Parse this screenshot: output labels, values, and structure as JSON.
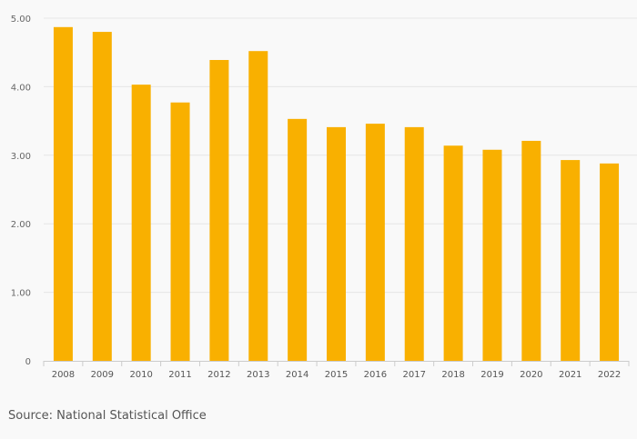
{
  "chart_data": {
    "type": "bar",
    "title": "",
    "xlabel": "",
    "ylabel": "",
    "categories": [
      "2008",
      "2009",
      "2010",
      "2011",
      "2012",
      "2013",
      "2014",
      "2015",
      "2016",
      "2017",
      "2018",
      "2019",
      "2020",
      "2021",
      "2022"
    ],
    "values": [
      4.87,
      4.8,
      4.03,
      3.77,
      4.39,
      4.52,
      3.53,
      3.41,
      3.46,
      3.41,
      3.14,
      3.08,
      3.21,
      2.93,
      2.88
    ],
    "ylim": [
      0,
      5
    ],
    "yticks": [
      0,
      1,
      2,
      3,
      4,
      5
    ],
    "ytick_labels": [
      "0",
      "1.00",
      "2.00",
      "3.00",
      "4.00",
      "5.00"
    ],
    "grid": true,
    "bar_color": "#f9b000"
  },
  "source": "Source: National Statistical Office"
}
